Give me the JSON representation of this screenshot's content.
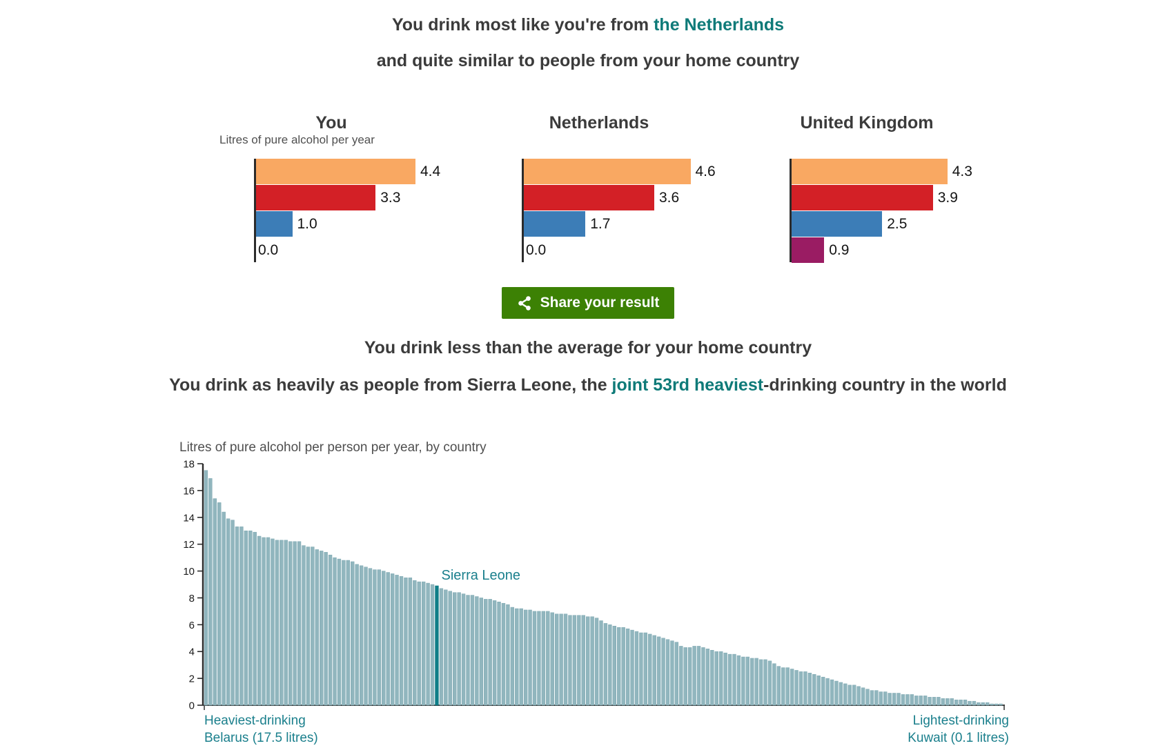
{
  "colors": {
    "teal_text": "#0e7a78",
    "chart_teal": "#1a7f8c",
    "orange": "#f9a862",
    "red": "#d32026",
    "blue": "#3c7db7",
    "purple": "#9a1c63",
    "bar_fill": "#91b6be",
    "bar_stroke": "#7ca7b1",
    "highlight_bar": "#0e7d87",
    "axis": "#2b2b2b",
    "button_green": "#3c8104"
  },
  "headline": {
    "line1_prefix": "You drink most like you're from ",
    "line1_highlight": "the Netherlands",
    "line2": "and quite similar to people from your home country"
  },
  "mini_charts": {
    "axis_label": "Litres of pure alcohol per year",
    "bar_colors": [
      "orange",
      "red",
      "blue",
      "purple"
    ],
    "charts": [
      {
        "title": "You",
        "values": [
          "4.4",
          "3.3",
          "1.0",
          "0.0"
        ]
      },
      {
        "title": "Netherlands",
        "values": [
          "4.6",
          "3.6",
          "1.7",
          "0.0"
        ]
      },
      {
        "title": "United Kingdom",
        "values": [
          "4.3",
          "3.9",
          "2.5",
          "0.9"
        ]
      }
    ]
  },
  "share_button": {
    "label": "Share your result"
  },
  "result": {
    "line1": "You drink less than the average for your home country",
    "line2_prefix": "You drink as heavily as people from Sierra Leone, the ",
    "line2_highlight": "joint 53rd heaviest",
    "line2_suffix": "-drinking country in the world"
  },
  "chart_data": {
    "type": "bar",
    "title": "Litres of pure alcohol per person per year, by country",
    "xlabel": "",
    "ylabel": "",
    "ylim": [
      0,
      18
    ],
    "yticks": [
      0,
      2,
      4,
      6,
      8,
      10,
      12,
      14,
      16,
      18
    ],
    "grid": false,
    "legend": "none",
    "highlight": {
      "index": 52,
      "label": "Sierra Leone",
      "value": 8.9,
      "rank_text": "joint 53rd heaviest"
    },
    "annotations": {
      "left": [
        "Heaviest-drinking",
        "Belarus (17.5 litres)"
      ],
      "right": [
        "Lightest-drinking",
        "Kuwait (0.1 litres)"
      ]
    },
    "values": [
      17.5,
      16.9,
      15.4,
      15.1,
      14.4,
      13.9,
      13.8,
      13.3,
      13.3,
      13.0,
      13.0,
      12.9,
      12.6,
      12.5,
      12.5,
      12.4,
      12.3,
      12.3,
      12.3,
      12.2,
      12.2,
      12.2,
      11.9,
      11.8,
      11.8,
      11.6,
      11.5,
      11.4,
      11.2,
      11.0,
      10.9,
      10.8,
      10.8,
      10.7,
      10.5,
      10.4,
      10.3,
      10.2,
      10.1,
      10.1,
      10.0,
      9.9,
      9.8,
      9.7,
      9.6,
      9.5,
      9.5,
      9.3,
      9.2,
      9.2,
      9.1,
      9.0,
      8.9,
      8.7,
      8.6,
      8.5,
      8.4,
      8.4,
      8.3,
      8.2,
      8.2,
      8.1,
      8.0,
      7.9,
      7.9,
      7.8,
      7.7,
      7.6,
      7.5,
      7.3,
      7.2,
      7.2,
      7.1,
      7.1,
      7.0,
      7.0,
      7.0,
      7.0,
      6.9,
      6.8,
      6.8,
      6.8,
      6.7,
      6.7,
      6.7,
      6.7,
      6.6,
      6.6,
      6.5,
      6.3,
      6.1,
      6.0,
      5.9,
      5.8,
      5.8,
      5.7,
      5.6,
      5.5,
      5.4,
      5.4,
      5.3,
      5.2,
      5.1,
      5.0,
      4.9,
      4.8,
      4.7,
      4.4,
      4.3,
      4.3,
      4.4,
      4.4,
      4.3,
      4.2,
      4.1,
      4.0,
      4.0,
      3.9,
      3.8,
      3.8,
      3.7,
      3.6,
      3.6,
      3.5,
      3.5,
      3.4,
      3.4,
      3.3,
      3.1,
      2.9,
      2.8,
      2.8,
      2.7,
      2.6,
      2.5,
      2.5,
      2.4,
      2.3,
      2.2,
      2.1,
      2.0,
      1.9,
      1.8,
      1.7,
      1.6,
      1.5,
      1.5,
      1.4,
      1.3,
      1.2,
      1.1,
      1.1,
      1.0,
      1.0,
      0.9,
      0.9,
      0.9,
      0.8,
      0.8,
      0.8,
      0.7,
      0.7,
      0.7,
      0.6,
      0.6,
      0.6,
      0.5,
      0.5,
      0.5,
      0.4,
      0.4,
      0.4,
      0.3,
      0.3,
      0.2,
      0.2,
      0.2,
      0.1,
      0.1,
      0.1
    ]
  }
}
